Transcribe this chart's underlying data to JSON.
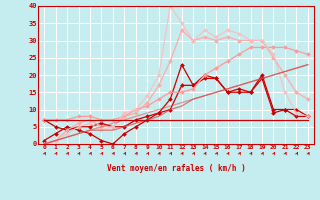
{
  "xlabel": "Vent moyen/en rafales ( km/h )",
  "xlim": [
    -0.5,
    23.5
  ],
  "ylim": [
    0,
    40
  ],
  "yticks": [
    0,
    5,
    10,
    15,
    20,
    25,
    30,
    35,
    40
  ],
  "xticks": [
    0,
    1,
    2,
    3,
    4,
    5,
    6,
    7,
    8,
    9,
    10,
    11,
    12,
    13,
    14,
    15,
    16,
    17,
    18,
    19,
    20,
    21,
    22,
    23
  ],
  "background_color": "#c5ecee",
  "grid_color": "#ffffff",
  "lines": [
    {
      "x": [
        0,
        1,
        2,
        3,
        4,
        5,
        6,
        7,
        8,
        9,
        10,
        11,
        12,
        13,
        14,
        15,
        16,
        17,
        18,
        19,
        20,
        21,
        22,
        23
      ],
      "y": [
        7,
        5,
        4,
        5,
        5,
        6,
        5,
        5,
        7,
        8,
        9,
        10,
        17,
        17,
        19,
        19,
        15,
        15,
        15,
        20,
        10,
        10,
        8,
        8
      ],
      "color": "#cc0000",
      "lw": 0.9,
      "marker": "D",
      "ms": 2.0,
      "alpha": 1.0
    },
    {
      "x": [
        0,
        1,
        2,
        3,
        4,
        5,
        6,
        7,
        8,
        9,
        10,
        11,
        12,
        13,
        14,
        15,
        16,
        17,
        18,
        19,
        20,
        21,
        22,
        23
      ],
      "y": [
        1,
        3,
        5,
        4,
        3,
        1,
        0,
        3,
        5,
        7,
        9,
        13,
        23,
        17,
        20,
        19,
        15,
        16,
        15,
        19,
        9,
        10,
        10,
        8
      ],
      "color": "#cc0000",
      "lw": 0.9,
      "marker": "D",
      "ms": 2.0,
      "alpha": 1.0
    },
    {
      "x": [
        0,
        1,
        2,
        3,
        4,
        5,
        6,
        7,
        8,
        9,
        10,
        11,
        12,
        13,
        14,
        15,
        16,
        17,
        18,
        19,
        20,
        21,
        22,
        23
      ],
      "y": [
        7,
        7,
        7,
        8,
        8,
        7,
        7,
        8,
        10,
        11,
        13,
        15,
        15,
        16,
        20,
        22,
        24,
        26,
        28,
        28,
        28,
        28,
        27,
        26
      ],
      "color": "#ff9999",
      "lw": 0.9,
      "marker": "D",
      "ms": 2.0,
      "alpha": 1.0
    },
    {
      "x": [
        0,
        1,
        2,
        3,
        4,
        5,
        6,
        7,
        8,
        9,
        10,
        11,
        12,
        13,
        14,
        15,
        16,
        17,
        18,
        19,
        20,
        21,
        22,
        23
      ],
      "y": [
        0,
        1,
        4,
        6,
        7,
        5,
        5,
        8,
        9,
        12,
        17,
        24,
        33,
        30,
        31,
        30,
        31,
        30,
        30,
        30,
        25,
        20,
        15,
        13
      ],
      "color": "#ffaaaa",
      "lw": 0.9,
      "marker": "D",
      "ms": 2.0,
      "alpha": 1.0
    },
    {
      "x": [
        0,
        1,
        2,
        3,
        4,
        5,
        6,
        7,
        8,
        9,
        10,
        11,
        12,
        13,
        14,
        15,
        16,
        17,
        18,
        19,
        20,
        21,
        22,
        23
      ],
      "y": [
        0,
        1,
        3,
        5,
        6,
        4,
        5,
        9,
        10,
        14,
        20,
        40,
        35,
        30,
        33,
        31,
        33,
        32,
        30,
        30,
        26,
        15,
        9,
        8
      ],
      "color": "#ffbbbb",
      "lw": 0.9,
      "marker": "D",
      "ms": 2.0,
      "alpha": 0.85
    },
    {
      "x": [
        0,
        1,
        2,
        3,
        4,
        5,
        6,
        7,
        8,
        9,
        10,
        11,
        12,
        13,
        14,
        15,
        16,
        17,
        18,
        19,
        20,
        21,
        22,
        23
      ],
      "y": [
        0,
        1,
        2,
        3,
        4,
        4,
        4,
        5,
        6,
        7,
        8,
        10,
        11,
        13,
        14,
        15,
        16,
        17,
        18,
        19,
        20,
        21,
        22,
        23
      ],
      "color": "#dd4444",
      "lw": 0.9,
      "marker": null,
      "ms": 0,
      "alpha": 0.7
    },
    {
      "x": [
        0,
        1,
        2,
        3,
        4,
        5,
        6,
        7,
        8,
        9,
        10,
        11,
        12,
        13,
        14,
        15,
        16,
        17,
        18,
        19,
        20,
        21,
        22,
        23
      ],
      "y": [
        0,
        1,
        2,
        3,
        4,
        5,
        6,
        7,
        8,
        9,
        10,
        11,
        12,
        13,
        14,
        15,
        16,
        17,
        18,
        19,
        20,
        21,
        22,
        23
      ],
      "color": "#dd4444",
      "lw": 0.9,
      "marker": null,
      "ms": 0,
      "alpha": 0.5
    },
    {
      "x": [
        0,
        1,
        2,
        3,
        4,
        5,
        6,
        7,
        8,
        9,
        10,
        11,
        12,
        13,
        14,
        15,
        16,
        17,
        18,
        19,
        20,
        21,
        22,
        23
      ],
      "y": [
        7,
        7,
        7,
        7,
        7,
        7,
        7,
        7,
        7,
        7,
        7,
        7,
        7,
        7,
        7,
        7,
        7,
        7,
        7,
        7,
        7,
        7,
        7,
        7
      ],
      "color": "#cc0000",
      "lw": 0.9,
      "marker": null,
      "ms": 0,
      "alpha": 1.0
    }
  ],
  "arrow_color": "#cc0000"
}
